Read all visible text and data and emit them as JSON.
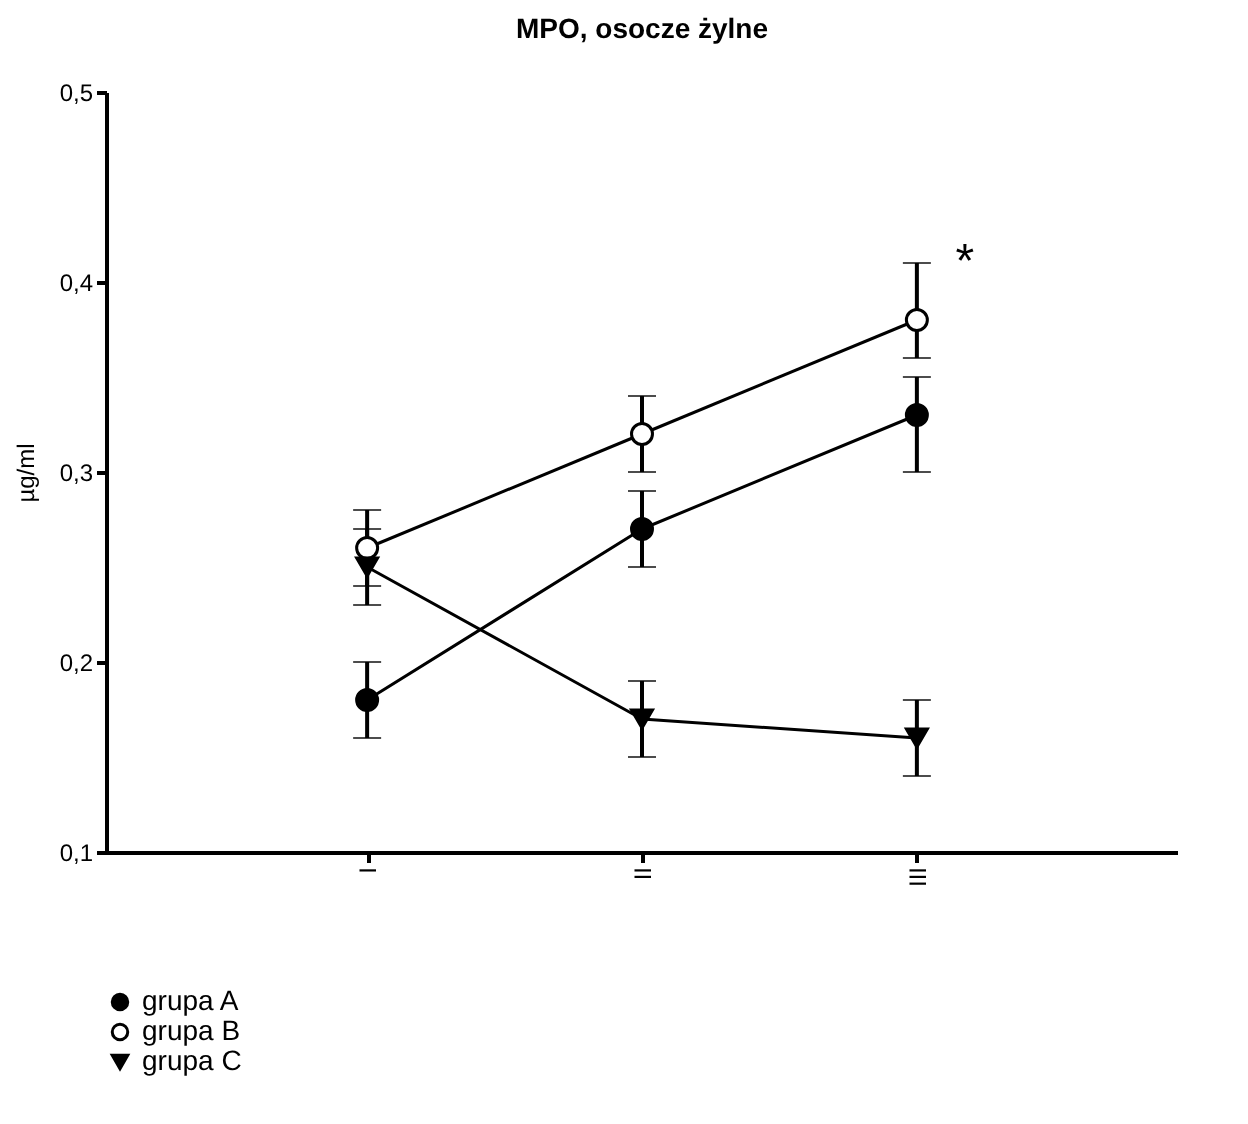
{
  "chart_data": {
    "type": "line",
    "title": "MPO, osocze żylne",
    "ylabel": "µg/ml",
    "categories": [
      "I",
      "II",
      "III"
    ],
    "series": [
      {
        "name": "grupa A",
        "color": "#000000",
        "marker": "circle",
        "values": [
          0.18,
          0.27,
          0.33
        ],
        "errors": [
          [
            0.16,
            0.2
          ],
          [
            0.25,
            0.29
          ],
          [
            0.3,
            0.35
          ]
        ]
      },
      {
        "name": "grupa B",
        "color": "#ffffff",
        "marker": "circle",
        "values": [
          0.26,
          0.32,
          0.38
        ],
        "errors": [
          [
            0.24,
            0.28
          ],
          [
            0.3,
            0.34
          ],
          [
            0.36,
            0.41
          ]
        ]
      },
      {
        "name": "grupa C",
        "color": "#000000",
        "marker": "triangle",
        "values": [
          0.25,
          0.17,
          0.16
        ],
        "errors": [
          [
            0.23,
            0.27
          ],
          [
            0.15,
            0.19
          ],
          [
            0.14,
            0.18
          ]
        ]
      }
    ],
    "ylim": [
      0.1,
      0.5
    ],
    "yticks": [
      {
        "value": 0.1,
        "label": "0,1"
      },
      {
        "value": 0.2,
        "label": "0,2"
      },
      {
        "value": 0.3,
        "label": "0,3"
      },
      {
        "value": 0.4,
        "label": "0,4"
      },
      {
        "value": 0.5,
        "label": "0,5"
      }
    ],
    "annotations": [
      {
        "text": "*",
        "x": "III",
        "y": 0.41
      }
    ],
    "grid": false,
    "legend": "bottom left",
    "line_style": "solid"
  }
}
